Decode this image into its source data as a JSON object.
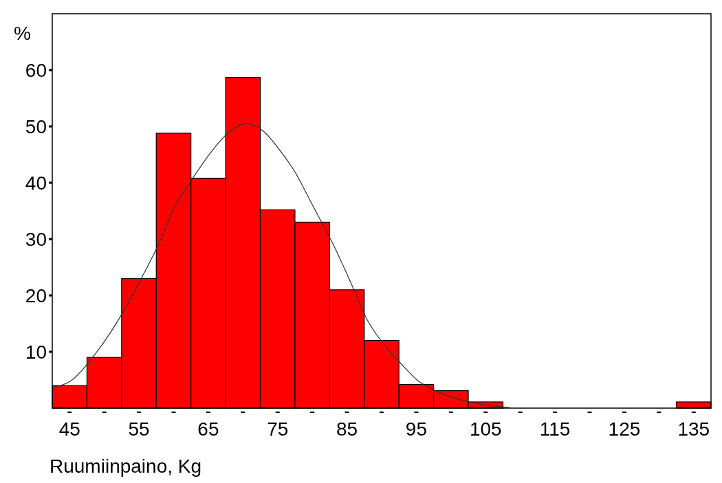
{
  "chart_data": {
    "type": "histogram",
    "xlabel": "Ruumiinpaino, Kg",
    "ylabel": "%",
    "bins": [
      42.5,
      47.5,
      52.5,
      57.5,
      62.5,
      67.5,
      72.5,
      77.5,
      82.5,
      87.5,
      92.5,
      97.5,
      102.5,
      107.5,
      112.5,
      117.5,
      122.5,
      127.5,
      132.5,
      137.5
    ],
    "values": [
      4.0,
      9.0,
      23.0,
      48.8,
      40.8,
      58.7,
      35.2,
      33.0,
      21.0,
      12.0,
      4.2,
      3.1,
      1.1,
      0,
      0,
      0,
      0,
      0,
      1.1
    ],
    "color": "#ff0000",
    "series": [
      {
        "type": "line",
        "color": "#333333",
        "x": [
          42.6,
          45,
          48.5,
          52.5,
          55.2,
          57.8,
          60.3,
          62.7,
          65.5,
          68.2,
          70.4,
          73.1,
          75.3,
          77.6,
          80,
          83.2,
          85.9,
          87.7,
          90,
          92.8,
          95.1,
          97.9,
          102.6,
          108.5
        ],
        "values": [
          3.7,
          4.7,
          9.3,
          16.6,
          22.7,
          29,
          36.1,
          40.7,
          45.6,
          49.2,
          50.5,
          49,
          45.8,
          41.7,
          36.1,
          28.6,
          21.3,
          16.2,
          11.8,
          7.9,
          5,
          3,
          1.1,
          0.1
        ]
      }
    ],
    "xlim": [
      42.5,
      137.5
    ],
    "ylim": [
      0,
      70
    ],
    "xticks": [
      45,
      {
        "value": 50,
        "label": null
      },
      55,
      {
        "value": 60,
        "label": null
      },
      65,
      {
        "value": 70,
        "label": null
      },
      75,
      {
        "value": 80,
        "label": null
      },
      85,
      {
        "value": 90,
        "label": null
      },
      95,
      {
        "value": 100,
        "label": null
      },
      105,
      {
        "value": 110,
        "label": null
      },
      115,
      {
        "value": 120,
        "label": null
      },
      125,
      {
        "value": 130,
        "label": null
      },
      135
    ],
    "yticks": [
      10,
      20,
      30,
      40,
      50,
      60
    ],
    "grid": false,
    "legend": false,
    "marker": "none",
    "line_style": "solid"
  }
}
